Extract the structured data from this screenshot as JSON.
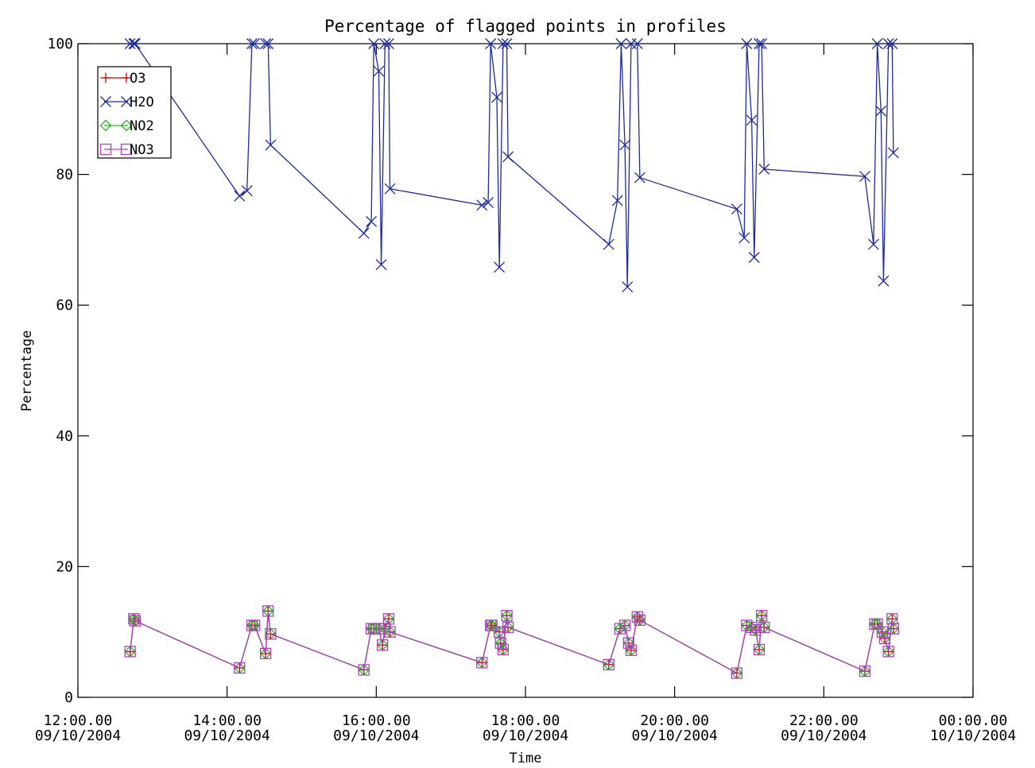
{
  "chart_data": {
    "type": "line",
    "title": "Percentage of flagged points in profiles",
    "xlabel": "Time",
    "ylabel": "Percentage",
    "xlim": [
      "2004-10-09T12:00",
      "2004-10-10T00:00"
    ],
    "ylim": [
      0,
      100
    ],
    "x_ticks": [
      {
        "line1": "12:00.00",
        "line2": "09/10/2004"
      },
      {
        "line1": "14:00.00",
        "line2": "09/10/2004"
      },
      {
        "line1": "16:00.00",
        "line2": "09/10/2004"
      },
      {
        "line1": "18:00.00",
        "line2": "09/10/2004"
      },
      {
        "line1": "20:00.00",
        "line2": "09/10/2004"
      },
      {
        "line1": "22:00.00",
        "line2": "09/10/2004"
      },
      {
        "line1": "00:00.00",
        "line2": "10/10/2004"
      }
    ],
    "y_ticks": [
      0,
      20,
      40,
      60,
      80,
      100
    ],
    "legend_position": "top-left",
    "grid": false,
    "series": [
      {
        "name": "O3",
        "color": "#cc0000",
        "marker": "plus",
        "points": [
          [
            "12:42",
            7
          ],
          [
            "12:45",
            12
          ],
          [
            "12:46",
            11.7
          ],
          [
            "14:10",
            4.5
          ],
          [
            "14:20",
            11
          ],
          [
            "14:22",
            11
          ],
          [
            "14:31",
            6.7
          ],
          [
            "14:33",
            13.2
          ],
          [
            "14:35",
            9.7
          ],
          [
            "15:50",
            4.2
          ],
          [
            "15:56",
            10.5
          ],
          [
            "15:58",
            10.5
          ],
          [
            "16:02",
            10.5
          ],
          [
            "16:05",
            8
          ],
          [
            "16:07",
            10.5
          ],
          [
            "16:10",
            12
          ],
          [
            "16:11",
            10
          ],
          [
            "17:25",
            5.3
          ],
          [
            "17:32",
            11
          ],
          [
            "17:33",
            11
          ],
          [
            "17:39",
            10
          ],
          [
            "17:40",
            8.3
          ],
          [
            "17:42",
            7.3
          ],
          [
            "17:45",
            12.5
          ],
          [
            "17:46",
            10.7
          ],
          [
            "19:07",
            5
          ],
          [
            "19:16",
            10.5
          ],
          [
            "19:20",
            11
          ],
          [
            "19:23",
            8.3
          ],
          [
            "19:25",
            7.2
          ],
          [
            "19:30",
            12.3
          ],
          [
            "19:32",
            11.8
          ],
          [
            "20:50",
            3.7
          ],
          [
            "20:58",
            11
          ],
          [
            "21:02",
            10.7
          ],
          [
            "21:05",
            10.3
          ],
          [
            "21:08",
            7.3
          ],
          [
            "21:10",
            12.5
          ],
          [
            "21:12",
            10.7
          ],
          [
            "22:33",
            4
          ],
          [
            "22:41",
            11.2
          ],
          [
            "22:43",
            11.2
          ],
          [
            "22:47",
            10
          ],
          [
            "22:49",
            9
          ],
          [
            "22:52",
            7
          ],
          [
            "22:55",
            12
          ],
          [
            "22:56",
            10.5
          ]
        ]
      },
      {
        "name": "H2O",
        "color": "#1f2a9e",
        "marker": "cross",
        "points": [
          [
            "12:42",
            100
          ],
          [
            "12:45",
            100
          ],
          [
            "12:46",
            100
          ],
          [
            "14:10",
            76.7
          ],
          [
            "14:16",
            77.5
          ],
          [
            "14:20",
            100
          ],
          [
            "14:22",
            100
          ],
          [
            "14:31",
            100
          ],
          [
            "14:33",
            100
          ],
          [
            "14:35",
            84.5
          ],
          [
            "15:50",
            71
          ],
          [
            "15:56",
            72.8
          ],
          [
            "15:58",
            100
          ],
          [
            "16:02",
            95.8
          ],
          [
            "16:04",
            66.2
          ],
          [
            "16:07",
            100
          ],
          [
            "16:10",
            100
          ],
          [
            "16:11",
            77.8
          ],
          [
            "17:25",
            75.3
          ],
          [
            "17:30",
            75.7
          ],
          [
            "17:32",
            100
          ],
          [
            "17:37",
            91.8
          ],
          [
            "17:39",
            65.8
          ],
          [
            "17:42",
            100
          ],
          [
            "17:45",
            100
          ],
          [
            "17:46",
            82.7
          ],
          [
            "19:07",
            69.3
          ],
          [
            "19:14",
            76
          ],
          [
            "19:17",
            100
          ],
          [
            "19:20",
            84.5
          ],
          [
            "19:22",
            62.8
          ],
          [
            "19:25",
            100
          ],
          [
            "19:30",
            100
          ],
          [
            "19:32",
            79.5
          ],
          [
            "20:50",
            74.7
          ],
          [
            "20:56",
            70.3
          ],
          [
            "20:58",
            100
          ],
          [
            "21:02",
            88.3
          ],
          [
            "21:04",
            67.3
          ],
          [
            "21:08",
            100
          ],
          [
            "21:10",
            100
          ],
          [
            "21:12",
            80.8
          ],
          [
            "22:33",
            79.7
          ],
          [
            "22:40",
            69.3
          ],
          [
            "22:43",
            100
          ],
          [
            "22:46",
            89.7
          ],
          [
            "22:48",
            63.7
          ],
          [
            "22:52",
            100
          ],
          [
            "22:55",
            100
          ],
          [
            "22:56",
            83.3
          ]
        ]
      },
      {
        "name": "NO2",
        "color": "#22bb22",
        "marker": "diamond",
        "points": [
          [
            "12:42",
            7
          ],
          [
            "12:45",
            12
          ],
          [
            "12:46",
            11.7
          ],
          [
            "14:10",
            4.5
          ],
          [
            "14:20",
            11
          ],
          [
            "14:22",
            11
          ],
          [
            "14:31",
            6.7
          ],
          [
            "14:33",
            13.2
          ],
          [
            "14:35",
            9.7
          ],
          [
            "15:50",
            4.2
          ],
          [
            "15:56",
            10.5
          ],
          [
            "15:58",
            10.5
          ],
          [
            "16:02",
            10.5
          ],
          [
            "16:05",
            8
          ],
          [
            "16:07",
            10.5
          ],
          [
            "16:10",
            12
          ],
          [
            "16:11",
            10
          ],
          [
            "17:25",
            5.3
          ],
          [
            "17:32",
            11
          ],
          [
            "17:33",
            11
          ],
          [
            "17:39",
            10
          ],
          [
            "17:40",
            8.3
          ],
          [
            "17:42",
            7.3
          ],
          [
            "17:45",
            12.5
          ],
          [
            "17:46",
            10.7
          ],
          [
            "19:07",
            5
          ],
          [
            "19:16",
            10.5
          ],
          [
            "19:20",
            11
          ],
          [
            "19:23",
            8.3
          ],
          [
            "19:25",
            7.2
          ],
          [
            "19:30",
            12.3
          ],
          [
            "19:32",
            11.8
          ],
          [
            "20:50",
            3.7
          ],
          [
            "20:58",
            11
          ],
          [
            "21:02",
            10.7
          ],
          [
            "21:05",
            10.3
          ],
          [
            "21:08",
            7.3
          ],
          [
            "21:10",
            12.5
          ],
          [
            "21:12",
            10.7
          ],
          [
            "22:33",
            4
          ],
          [
            "22:41",
            11.2
          ],
          [
            "22:43",
            11.2
          ],
          [
            "22:47",
            10
          ],
          [
            "22:49",
            9
          ],
          [
            "22:52",
            7
          ],
          [
            "22:55",
            12
          ],
          [
            "22:56",
            10.5
          ]
        ]
      },
      {
        "name": "NO3",
        "color": "#b040c0",
        "marker": "square",
        "points": [
          [
            "12:42",
            7
          ],
          [
            "12:45",
            12
          ],
          [
            "12:46",
            11.7
          ],
          [
            "14:10",
            4.5
          ],
          [
            "14:20",
            11
          ],
          [
            "14:22",
            11
          ],
          [
            "14:31",
            6.7
          ],
          [
            "14:33",
            13.2
          ],
          [
            "14:35",
            9.7
          ],
          [
            "15:50",
            4.2
          ],
          [
            "15:56",
            10.5
          ],
          [
            "15:58",
            10.5
          ],
          [
            "16:02",
            10.5
          ],
          [
            "16:05",
            8
          ],
          [
            "16:07",
            10.5
          ],
          [
            "16:10",
            12
          ],
          [
            "16:11",
            10
          ],
          [
            "17:25",
            5.3
          ],
          [
            "17:32",
            11
          ],
          [
            "17:33",
            11
          ],
          [
            "17:39",
            10
          ],
          [
            "17:40",
            8.3
          ],
          [
            "17:42",
            7.3
          ],
          [
            "17:45",
            12.5
          ],
          [
            "17:46",
            10.7
          ],
          [
            "19:07",
            5
          ],
          [
            "19:16",
            10.5
          ],
          [
            "19:20",
            11
          ],
          [
            "19:23",
            8.3
          ],
          [
            "19:25",
            7.2
          ],
          [
            "19:30",
            12.3
          ],
          [
            "19:32",
            11.8
          ],
          [
            "20:50",
            3.7
          ],
          [
            "20:58",
            11
          ],
          [
            "21:02",
            10.7
          ],
          [
            "21:05",
            10.3
          ],
          [
            "21:08",
            7.3
          ],
          [
            "21:10",
            12.5
          ],
          [
            "21:12",
            10.7
          ],
          [
            "22:33",
            4
          ],
          [
            "22:41",
            11.2
          ],
          [
            "22:43",
            11.2
          ],
          [
            "22:47",
            10
          ],
          [
            "22:49",
            9
          ],
          [
            "22:52",
            7
          ],
          [
            "22:55",
            12
          ],
          [
            "22:56",
            10.5
          ]
        ]
      }
    ]
  }
}
